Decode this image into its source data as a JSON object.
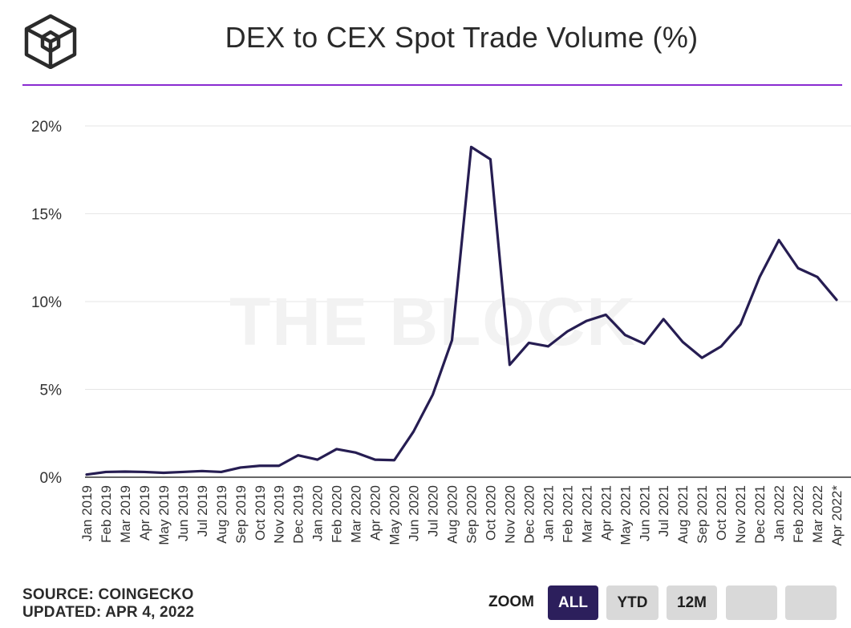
{
  "title": "DEX to CEX Spot Trade Volume (%)",
  "watermark": "THE BLOCK",
  "footer": {
    "source": "SOURCE: COINGECKO",
    "updated": "UPDATED: APR 4, 2022"
  },
  "zoom": {
    "label": "ZOOM",
    "buttons": [
      "ALL",
      "YTD",
      "12M",
      "",
      ""
    ],
    "active": "ALL"
  },
  "colors": {
    "line": "#261d52",
    "accent_rule": "#8a2bd1",
    "active_button": "#2c1f5c",
    "inactive_button": "#d9d9d9",
    "grid": "#e6e6e6"
  },
  "chart_data": {
    "type": "line",
    "title": "DEX to CEX Spot Trade Volume (%)",
    "xlabel": "",
    "ylabel": "",
    "ylim": [
      0,
      20
    ],
    "yticks": [
      "0%",
      "5%",
      "10%",
      "15%",
      "20%"
    ],
    "grid": true,
    "categories": [
      "Jan 2019",
      "Feb 2019",
      "Mar 2019",
      "Apr 2019",
      "May 2019",
      "Jun 2019",
      "Jul 2019",
      "Aug 2019",
      "Sep 2019",
      "Oct 2019",
      "Nov 2019",
      "Dec 2019",
      "Jan 2020",
      "Feb 2020",
      "Mar 2020",
      "Apr 2020",
      "May 2020",
      "Jun 2020",
      "Jul 2020",
      "Aug 2020",
      "Sep 2020",
      "Oct 2020",
      "Nov 2020",
      "Dec 2020",
      "Jan 2021",
      "Feb 2021",
      "Mar 2021",
      "Apr 2021",
      "May 2021",
      "Jun 2021",
      "Jul 2021",
      "Aug 2021",
      "Sep 2021",
      "Oct 2021",
      "Nov 2021",
      "Dec 2021",
      "Jan 2022",
      "Feb 2022",
      "Mar 2022",
      "Apr 2022*"
    ],
    "series": [
      {
        "values": [
          0.15,
          0.3,
          0.32,
          0.3,
          0.25,
          0.3,
          0.35,
          0.3,
          0.55,
          0.65,
          0.65,
          1.25,
          1.0,
          1.6,
          1.4,
          1.0,
          0.97,
          2.6,
          4.7,
          7.8,
          18.8,
          18.1,
          6.4,
          7.65,
          7.45,
          8.3,
          8.9,
          9.25,
          8.1,
          7.6,
          9.0,
          7.7,
          6.8,
          7.45,
          8.7,
          11.4,
          13.5,
          11.9,
          11.4,
          10.1
        ]
      }
    ]
  }
}
